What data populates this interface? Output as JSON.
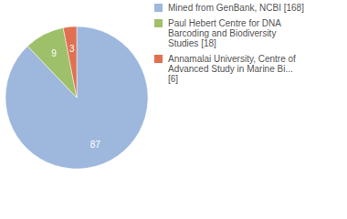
{
  "chart_data": {
    "type": "pie",
    "categories": [
      "Mined from GenBank, NCBI [168]",
      "Paul Hebert Centre for DNA Barcoding and Biodiversity Studies [18]",
      "Annamalai University, Centre of Advanced Study in Marine Bi... [6]"
    ],
    "values": [
      87,
      9,
      3
    ],
    "colors": [
      "#9db8dc",
      "#9fc06a",
      "#e07050"
    ],
    "data_labels": true,
    "legend": "top-right"
  }
}
